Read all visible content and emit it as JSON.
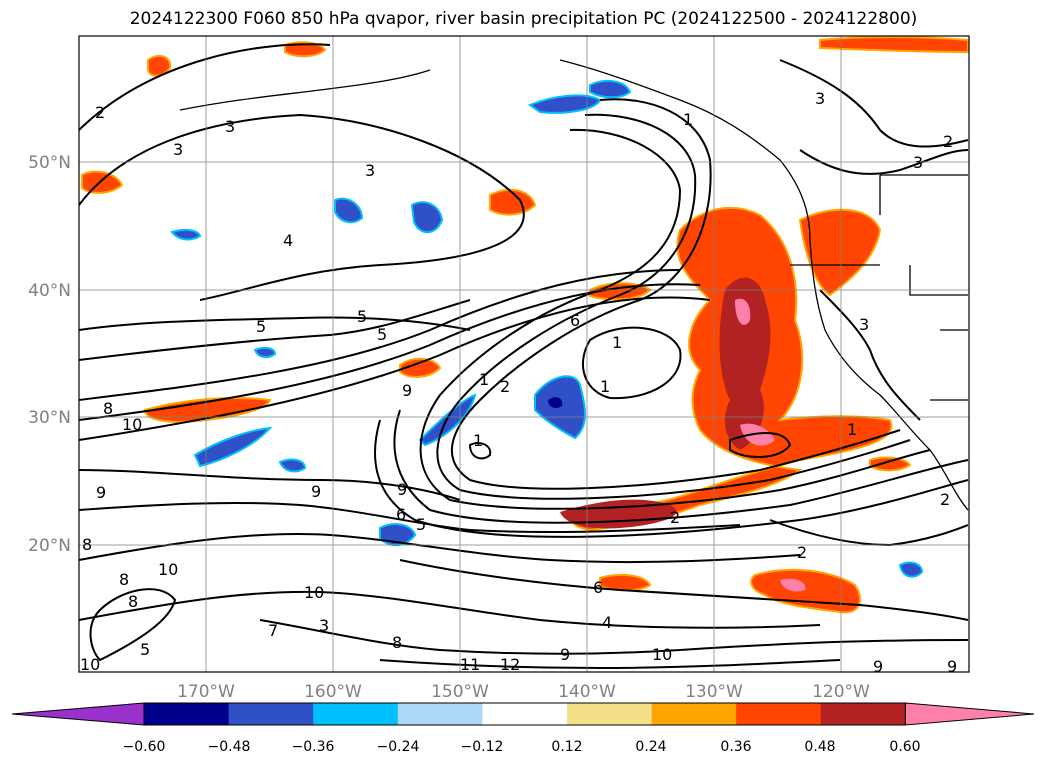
{
  "title": "2024122300 F060 850 hPa qvapor, river basin precipitation PC (2024122500 - 2024122800)",
  "axes": {
    "lon_ticks": [
      "170°W",
      "160°W",
      "150°W",
      "140°W",
      "130°W",
      "120°W"
    ],
    "lat_ticks": [
      "50°N",
      "40°N",
      "30°N",
      "20°N"
    ]
  },
  "contour_labels": [
    "2",
    "3",
    "3",
    "3",
    "4",
    "5",
    "5",
    "5",
    "6",
    "1",
    "1",
    "1",
    "2",
    "1",
    "8",
    "10",
    "9",
    "9",
    "8",
    "10",
    "9",
    "9",
    "6",
    "5",
    "8",
    "10",
    "8",
    "5",
    "10",
    "7",
    "3",
    "8",
    "6",
    "4",
    "10",
    "9",
    "11",
    "12",
    "2",
    "2",
    "9",
    "9",
    "1",
    "2",
    "3",
    "3",
    "3",
    "2",
    "1"
  ],
  "colorbar": {
    "ticks": [
      "−0.60",
      "−0.48",
      "−0.36",
      "−0.24",
      "−0.12",
      "0.12",
      "0.24",
      "0.36",
      "0.48",
      "0.60"
    ],
    "colors": [
      "#9932cc",
      "#00008b",
      "#3050c8",
      "#00bfff",
      "#add8f5",
      "#ffffff",
      "#f5e08a",
      "#ffa500",
      "#ff4500",
      "#b22222",
      "#ff80a8"
    ]
  }
}
